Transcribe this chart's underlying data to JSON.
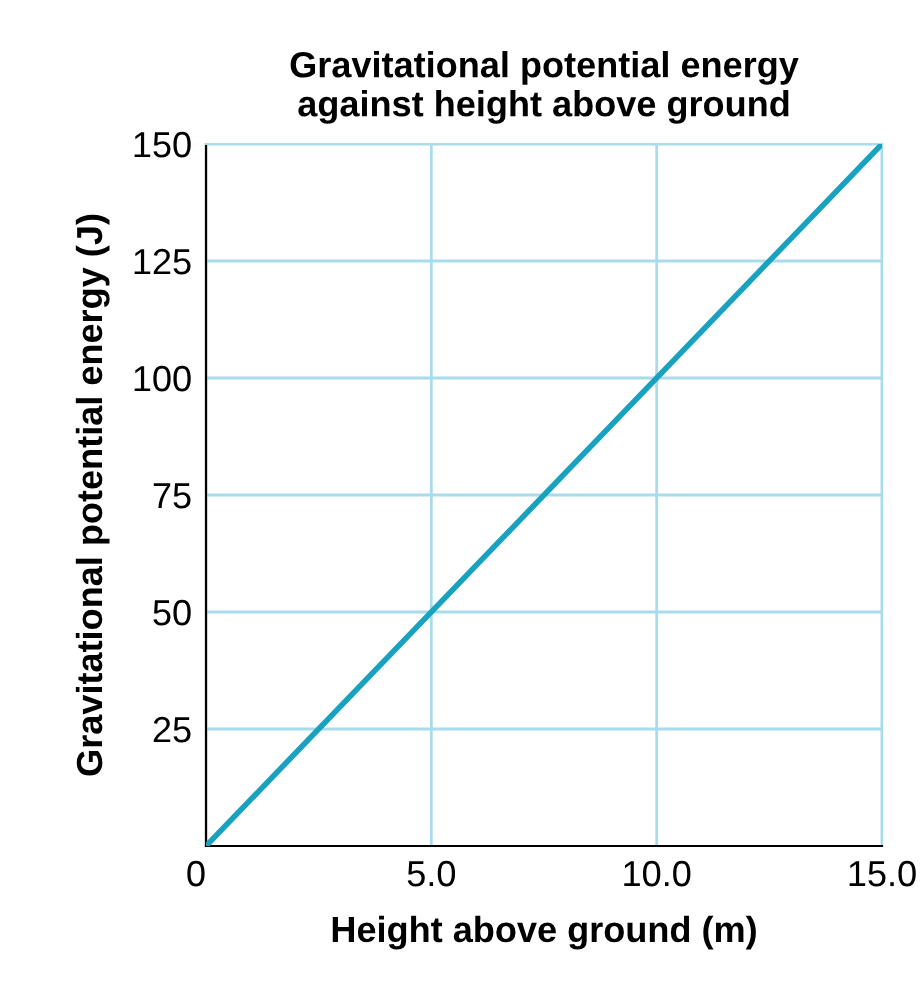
{
  "chart_data": {
    "type": "line",
    "title": "Gravitational potential energy\nagainst height above ground",
    "xlabel": "Height above ground (m)",
    "ylabel": "Gravitational potential energy (J)",
    "x": [
      0,
      15
    ],
    "series": [
      {
        "color": "#18a2c0",
        "values": [
          0,
          150
        ]
      }
    ],
    "xlim": [
      0,
      15
    ],
    "ylim": [
      0,
      150
    ],
    "xticks": [
      {
        "value": 0,
        "label": "0"
      },
      {
        "value": 5,
        "label": "5.0"
      },
      {
        "value": 10,
        "label": "10.0"
      },
      {
        "value": 15,
        "label": "15.0"
      }
    ],
    "yticks": [
      25,
      50,
      75,
      100,
      125,
      150
    ],
    "grid": true,
    "marker": "none",
    "line_style": "solid"
  }
}
